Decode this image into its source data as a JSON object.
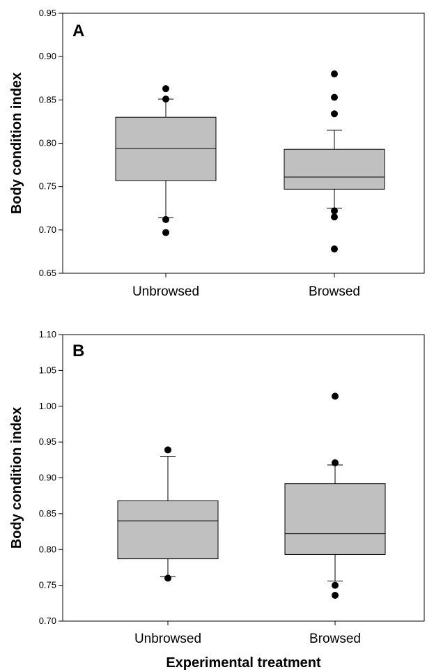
{
  "chart_data": [
    {
      "type": "box",
      "panel_label": "A",
      "ylabel": "Body condition index",
      "xlabel": "",
      "ylim": [
        0.65,
        0.95
      ],
      "yticks": [
        "0.65",
        "0.70",
        "0.75",
        "0.80",
        "0.85",
        "0.90",
        "0.95"
      ],
      "categories": [
        "Unbrowsed",
        "Browsed"
      ],
      "boxes": [
        {
          "category": "Unbrowsed",
          "whisker_low": 0.714,
          "q1": 0.757,
          "median": 0.794,
          "q3": 0.83,
          "whisker_high": 0.851,
          "outliers": [
            0.863,
            0.851,
            0.712,
            0.697
          ]
        },
        {
          "category": "Browsed",
          "whisker_low": 0.725,
          "q1": 0.747,
          "median": 0.761,
          "q3": 0.793,
          "whisker_high": 0.815,
          "outliers": [
            0.88,
            0.853,
            0.834,
            0.722,
            0.715,
            0.678
          ]
        }
      ],
      "box_color": "#c0c0c0",
      "grid": false
    },
    {
      "type": "box",
      "panel_label": "B",
      "ylabel": "Body condition index",
      "xlabel": "Experimental treatment",
      "ylim": [
        0.7,
        1.1
      ],
      "yticks": [
        "0.70",
        "0.75",
        "0.80",
        "0.85",
        "0.90",
        "0.95",
        "1.00",
        "1.05",
        "1.10"
      ],
      "categories": [
        "Unbrowsed",
        "Browsed"
      ],
      "boxes": [
        {
          "category": "Unbrowsed",
          "whisker_low": 0.762,
          "q1": 0.787,
          "median": 0.84,
          "q3": 0.868,
          "whisker_high": 0.93,
          "outliers": [
            0.939,
            0.76
          ]
        },
        {
          "category": "Browsed",
          "whisker_low": 0.756,
          "q1": 0.793,
          "median": 0.822,
          "q3": 0.892,
          "whisker_high": 0.918,
          "outliers": [
            1.014,
            0.921,
            0.75,
            0.736
          ]
        }
      ],
      "box_color": "#c0c0c0",
      "grid": false
    }
  ]
}
